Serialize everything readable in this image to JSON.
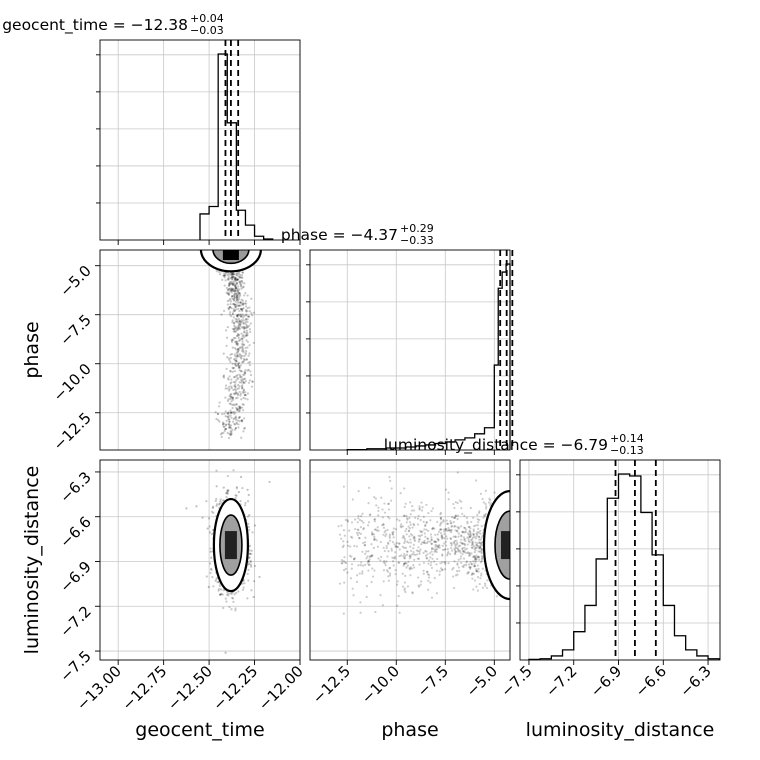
{
  "chart_data": {
    "type": "corner",
    "parameters": [
      "geocent_time",
      "phase",
      "luminosity_distance"
    ],
    "axis_labels": [
      "geocent_time",
      "phase",
      "luminosity_distance"
    ],
    "ranges": {
      "geocent_time": [
        -13.1,
        -12.0
      ],
      "phase": [
        -14.4,
        -4.2
      ],
      "luminosity_distance": [
        -7.56,
        -6.22
      ]
    },
    "ticks": {
      "geocent_time": {
        "values": [
          -13.0,
          -12.75,
          -12.5,
          -12.25,
          -12.0
        ],
        "labels": [
          "−13.00",
          "−12.75",
          "−12.50",
          "−12.25",
          "−12.00"
        ]
      },
      "phase": {
        "values": [
          -12.5,
          -10.0,
          -7.5,
          -5.0
        ],
        "labels": [
          "−12.5",
          "−10.0",
          "−7.5",
          "−5.0"
        ]
      },
      "luminosity_distance": {
        "values": [
          -7.5,
          -7.2,
          -6.9,
          -6.6,
          -6.3
        ],
        "labels": [
          "−7.5",
          "−7.2",
          "−6.9",
          "−6.6",
          "−6.3"
        ]
      }
    },
    "titles": {
      "geocent_time": {
        "name": "geocent_time",
        "median": "−12.38",
        "plus": "+0.04",
        "minus": "−0.03"
      },
      "phase": {
        "name": "phase",
        "median": "−4.37",
        "plus": "+0.29",
        "minus": "−0.33"
      },
      "luminosity_distance": {
        "name": "luminosity_distance",
        "median": "−6.79",
        "plus": "+0.14",
        "minus": "−0.13"
      }
    },
    "quantiles": {
      "geocent_time": [
        -12.41,
        -12.38,
        -12.34
      ],
      "phase": [
        -4.7,
        -4.37,
        -4.08
      ],
      "luminosity_distance": [
        -6.92,
        -6.79,
        -6.65
      ]
    },
    "histograms": {
      "geocent_time": {
        "edges": [
          -12.55,
          -12.5,
          -12.45,
          -12.4,
          -12.35,
          -12.3,
          -12.25,
          -12.2,
          -12.15
        ],
        "counts": [
          0.14,
          0.18,
          1.0,
          0.63,
          0.16,
          0.08,
          0.02,
          0.005
        ]
      },
      "phase": {
        "edges": [
          -12.5,
          -11.5,
          -10.5,
          -9.5,
          -9.0,
          -8.5,
          -8.0,
          -7.5,
          -7.0,
          -6.5,
          -6.0,
          -5.5,
          -5.0,
          -4.8,
          -4.6,
          -4.4,
          -4.2
        ],
        "counts": [
          0.002,
          0.006,
          0.01,
          0.015,
          0.02,
          0.025,
          0.032,
          0.04,
          0.05,
          0.06,
          0.08,
          0.11,
          0.42,
          0.8,
          0.88,
          0.92
        ]
      },
      "luminosity_distance": {
        "edges": [
          -7.5,
          -7.425,
          -7.35,
          -7.275,
          -7.2,
          -7.125,
          -7.05,
          -6.975,
          -6.9,
          -6.825,
          -6.75,
          -6.675,
          -6.6,
          -6.525,
          -6.45,
          -6.375,
          -6.3,
          -6.225
        ],
        "counts": [
          0.003,
          0.006,
          0.02,
          0.05,
          0.14,
          0.27,
          0.5,
          0.8,
          0.92,
          0.91,
          0.73,
          0.52,
          0.27,
          0.12,
          0.05,
          0.02,
          0.006
        ]
      }
    },
    "panels_2d": [
      {
        "x": "geocent_time",
        "y": "phase",
        "center": [
          -12.38,
          -4.37
        ]
      },
      {
        "x": "geocent_time",
        "y": "luminosity_distance",
        "center": [
          -12.38,
          -6.79
        ]
      },
      {
        "x": "phase",
        "y": "luminosity_distance",
        "center": [
          -4.37,
          -6.79
        ]
      }
    ],
    "grid": true
  }
}
